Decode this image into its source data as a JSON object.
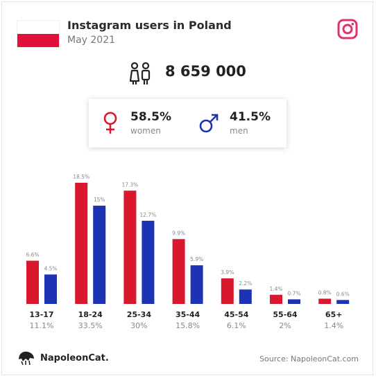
{
  "header": {
    "title": "Instagram users in Poland",
    "subtitle": "May 2021"
  },
  "total_users": "8 659 000",
  "gender": {
    "women": {
      "pct": "58.5%",
      "label": "women"
    },
    "men": {
      "pct": "41.5%",
      "label": "men"
    }
  },
  "colors": {
    "women": "#d8192d",
    "men": "#1c34b4",
    "flag_red": "#e0103a",
    "instagram": "#e1306c"
  },
  "icons": {
    "users": "users-icon",
    "instagram": "instagram-icon",
    "female": "female-icon",
    "male": "male-icon",
    "logo": "napoleoncat-logo"
  },
  "chart_data": {
    "type": "bar",
    "categories": [
      "13-17",
      "18-24",
      "25-34",
      "35-44",
      "45-54",
      "55-64",
      "65+"
    ],
    "category_totals": [
      "11.1%",
      "33.5%",
      "30%",
      "15.8%",
      "6.1%",
      "2%",
      "1.4%"
    ],
    "series": [
      {
        "values": [
          6.6,
          18.5,
          17.3,
          9.9,
          3.9,
          1.4,
          0.8
        ],
        "labels": [
          "6.6%",
          "18.5%",
          "17.3%",
          "9.9%",
          "3.9%",
          "1.4%",
          "0.8%"
        ]
      },
      {
        "values": [
          4.5,
          15,
          12.7,
          5.9,
          2.2,
          0.7,
          0.6
        ],
        "labels": [
          "4.5%",
          "15%",
          "12.7%",
          "5.9%",
          "2.2%",
          "0.7%",
          "0.6%"
        ]
      }
    ]
  },
  "footer": {
    "brand": "NapoleonCat.",
    "source": "Source: NapoleonCat.com"
  }
}
